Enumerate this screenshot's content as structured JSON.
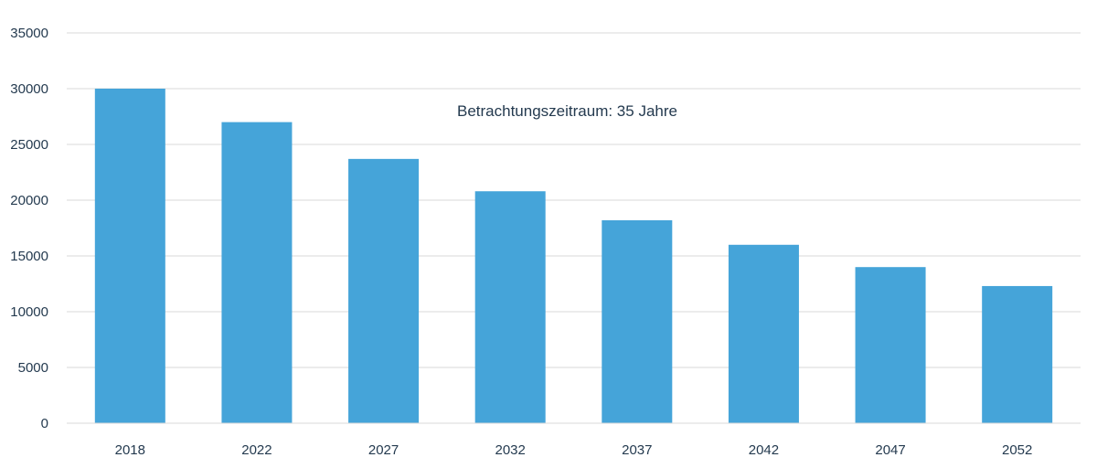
{
  "chart_data": {
    "type": "bar",
    "categories": [
      "2018",
      "2022",
      "2027",
      "2032",
      "2037",
      "2042",
      "2047",
      "2052"
    ],
    "values": [
      30000,
      27000,
      23700,
      20800,
      18200,
      16000,
      14000,
      12300
    ],
    "ylim": [
      0,
      35000
    ],
    "yticks": [
      0,
      5000,
      10000,
      15000,
      20000,
      25000,
      30000,
      35000
    ],
    "annotation": "Betrachtungszeitraum: 35 Jahre",
    "grid": true,
    "bar_color": "#45a4d9",
    "text_color": "#243a4f",
    "grid_color": "#d9d9d9"
  }
}
